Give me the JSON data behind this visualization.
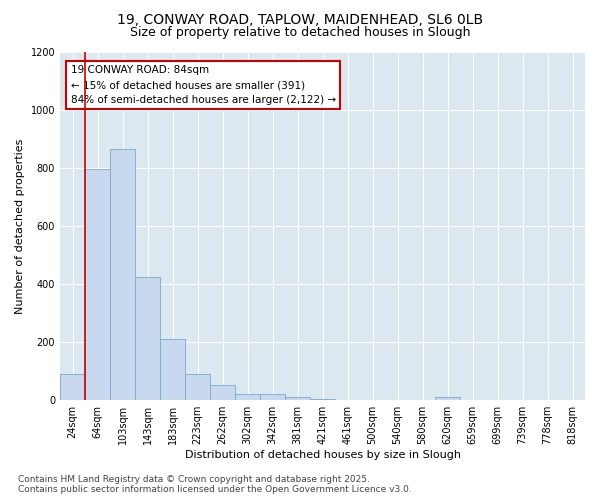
{
  "title_line1": "19, CONWAY ROAD, TAPLOW, MAIDENHEAD, SL6 0LB",
  "title_line2": "Size of property relative to detached houses in Slough",
  "xlabel": "Distribution of detached houses by size in Slough",
  "ylabel": "Number of detached properties",
  "categories": [
    "24sqm",
    "64sqm",
    "103sqm",
    "143sqm",
    "183sqm",
    "223sqm",
    "262sqm",
    "302sqm",
    "342sqm",
    "381sqm",
    "421sqm",
    "461sqm",
    "500sqm",
    "540sqm",
    "580sqm",
    "620sqm",
    "659sqm",
    "699sqm",
    "739sqm",
    "778sqm",
    "818sqm"
  ],
  "values": [
    90,
    795,
    865,
    425,
    210,
    90,
    52,
    20,
    20,
    10,
    5,
    0,
    0,
    0,
    0,
    10,
    0,
    0,
    0,
    0,
    0
  ],
  "bar_color": "#c8d8ee",
  "bar_edge_color": "#7aaad0",
  "vline_x_index": 1,
  "vline_color": "#cc0000",
  "annotation_text": "19 CONWAY ROAD: 84sqm\n← 15% of detached houses are smaller (391)\n84% of semi-detached houses are larger (2,122) →",
  "annotation_box_color": "#ffffff",
  "annotation_box_edge": "#cc0000",
  "ylim": [
    0,
    1200
  ],
  "yticks": [
    0,
    200,
    400,
    600,
    800,
    1000,
    1200
  ],
  "fig_bg_color": "#ffffff",
  "plot_bg_color": "#dce8f0",
  "grid_color": "#ffffff",
  "footer_line1": "Contains HM Land Registry data © Crown copyright and database right 2025.",
  "footer_line2": "Contains public sector information licensed under the Open Government Licence v3.0.",
  "title_fontsize": 10,
  "subtitle_fontsize": 9,
  "axis_label_fontsize": 8,
  "tick_fontsize": 7,
  "annotation_fontsize": 7.5,
  "footer_fontsize": 6.5
}
